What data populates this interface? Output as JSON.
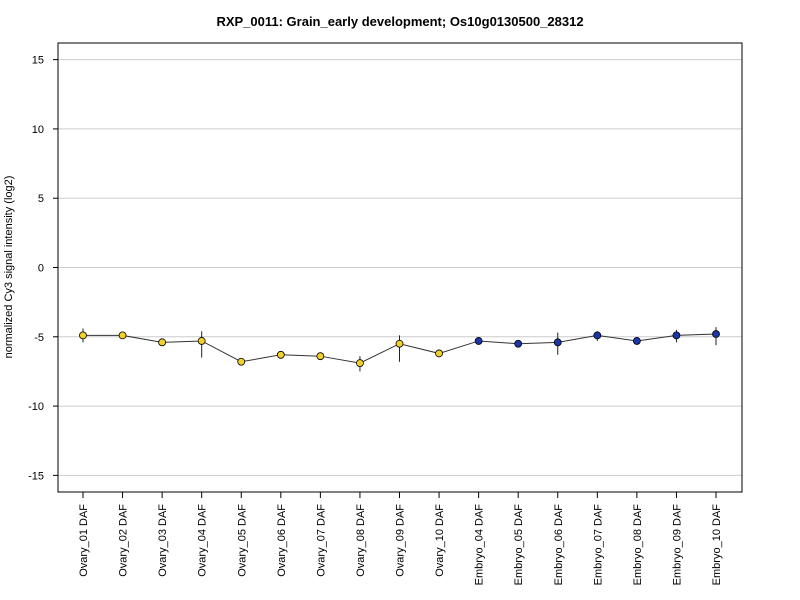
{
  "chart_data": {
    "type": "line",
    "title": "RXP_0011: Grain_early development; Os10g0130500_28312",
    "xlabel": "",
    "ylabel": "normalized Cy3 signal intensity (log2)",
    "ylim": [
      -16.2,
      16.2
    ],
    "yticks": [
      -15,
      -10,
      -5,
      0,
      5,
      10,
      15
    ],
    "grid": "horizontal",
    "categories": [
      "Ovary_01 DAF",
      "Ovary_02 DAF",
      "Ovary_03 DAF",
      "Ovary_04 DAF",
      "Ovary_05 DAF",
      "Ovary_06 DAF",
      "Ovary_07 DAF",
      "Ovary_08 DAF",
      "Ovary_09 DAF",
      "Ovary_10 DAF",
      "Embryo_04 DAF",
      "Embryo_05 DAF",
      "Embryo_06 DAF",
      "Embryo_07 DAF",
      "Embryo_08 DAF",
      "Embryo_09 DAF",
      "Embryo_10 DAF"
    ],
    "values": [
      -4.9,
      -4.9,
      -5.4,
      -5.3,
      -6.8,
      -6.3,
      -6.4,
      -6.9,
      -5.5,
      -6.2,
      -5.3,
      -5.5,
      -5.4,
      -4.9,
      -5.3,
      -4.9,
      -4.8
    ],
    "error_low": [
      -5.4,
      -5.1,
      -5.4,
      -6.5,
      -6.9,
      -6.4,
      -6.6,
      -7.5,
      -6.8,
      -6.4,
      -5.4,
      -5.6,
      -6.3,
      -5.3,
      -5.4,
      -5.4,
      -5.6
    ],
    "error_high": [
      -4.4,
      -4.7,
      -5.3,
      -4.6,
      -6.6,
      -6.2,
      -6.3,
      -6.4,
      -4.9,
      -6.1,
      -5.1,
      -5.4,
      -4.7,
      -4.6,
      -5.2,
      -4.5,
      -4.3
    ],
    "point_colors": [
      "#f2d02a",
      "#f2d02a",
      "#f2d02a",
      "#f2d02a",
      "#f2d02a",
      "#f2d02a",
      "#f2d02a",
      "#f2d02a",
      "#f2d02a",
      "#f2d02a",
      "#1c36a8",
      "#1c36a8",
      "#1c36a8",
      "#1c36a8",
      "#1c36a8",
      "#1c36a8",
      "#1c36a8"
    ],
    "line_color": "#333333",
    "grid_color": "#cccccc"
  }
}
